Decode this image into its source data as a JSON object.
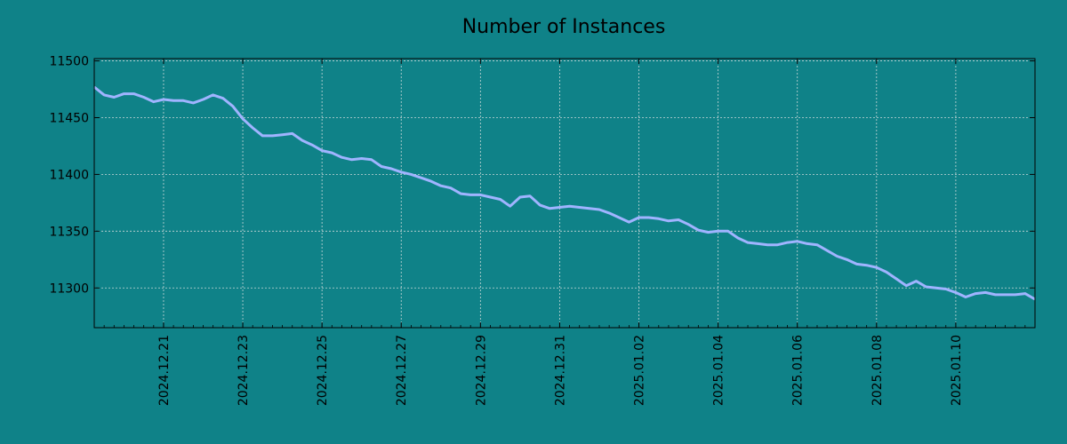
{
  "chart_data": {
    "type": "line",
    "title": "Number of Instances",
    "xlabel": "",
    "ylabel": "",
    "xlim": [
      "2024-12-19 06:00",
      "2025-01-12 00:00"
    ],
    "ylim": [
      11265,
      11502
    ],
    "grid": true,
    "x_ticks": [
      "2024.12.21",
      "2024.12.23",
      "2024.12.25",
      "2024.12.27",
      "2024.12.29",
      "2024.12.31",
      "2025.01.02",
      "2025.01.04",
      "2025.01.06",
      "2025.01.08",
      "2025.01.10"
    ],
    "y_ticks": [
      11300,
      11350,
      11400,
      11450,
      11500
    ],
    "colors": {
      "background": "#0f8288",
      "line": "#a0b4ff",
      "grid": "#c8d8d8",
      "axis": "#000000"
    },
    "series": [
      {
        "x": [
          "2024-12-19 06:00",
          "2024-12-19 12:00",
          "2024-12-19 18:00",
          "2024-12-20 00:00",
          "2024-12-20 06:00",
          "2024-12-20 12:00",
          "2024-12-20 18:00",
          "2024-12-21 00:00",
          "2024-12-21 06:00",
          "2024-12-21 12:00",
          "2024-12-21 18:00",
          "2024-12-22 00:00",
          "2024-12-22 06:00",
          "2024-12-22 12:00",
          "2024-12-22 18:00",
          "2024-12-23 00:00",
          "2024-12-23 06:00",
          "2024-12-23 12:00",
          "2024-12-23 18:00",
          "2024-12-24 00:00",
          "2024-12-24 06:00",
          "2024-12-24 12:00",
          "2024-12-24 18:00",
          "2024-12-25 00:00",
          "2024-12-25 06:00",
          "2024-12-25 12:00",
          "2024-12-25 18:00",
          "2024-12-26 00:00",
          "2024-12-26 06:00",
          "2024-12-26 12:00",
          "2024-12-26 18:00",
          "2024-12-27 00:00",
          "2024-12-27 06:00",
          "2024-12-27 12:00",
          "2024-12-27 18:00",
          "2024-12-28 00:00",
          "2024-12-28 06:00",
          "2024-12-28 12:00",
          "2024-12-28 18:00",
          "2024-12-29 00:00",
          "2024-12-29 06:00",
          "2024-12-29 12:00",
          "2024-12-29 18:00",
          "2024-12-30 00:00",
          "2024-12-30 06:00",
          "2024-12-30 12:00",
          "2024-12-30 18:00",
          "2024-12-31 00:00",
          "2024-12-31 06:00",
          "2024-12-31 12:00",
          "2024-12-31 18:00",
          "2025-01-01 00:00",
          "2025-01-01 06:00",
          "2025-01-01 12:00",
          "2025-01-01 18:00",
          "2025-01-02 00:00",
          "2025-01-02 06:00",
          "2025-01-02 12:00",
          "2025-01-02 18:00",
          "2025-01-03 00:00",
          "2025-01-03 06:00",
          "2025-01-03 12:00",
          "2025-01-03 18:00",
          "2025-01-04 00:00",
          "2025-01-04 06:00",
          "2025-01-04 12:00",
          "2025-01-04 18:00",
          "2025-01-05 00:00",
          "2025-01-05 06:00",
          "2025-01-05 12:00",
          "2025-01-05 18:00",
          "2025-01-06 00:00",
          "2025-01-06 06:00",
          "2025-01-06 12:00",
          "2025-01-06 18:00",
          "2025-01-07 00:00",
          "2025-01-07 06:00",
          "2025-01-07 12:00",
          "2025-01-07 18:00",
          "2025-01-08 00:00",
          "2025-01-08 06:00",
          "2025-01-08 12:00",
          "2025-01-08 18:00",
          "2025-01-09 00:00",
          "2025-01-09 06:00",
          "2025-01-09 12:00",
          "2025-01-09 18:00",
          "2025-01-10 00:00",
          "2025-01-10 06:00",
          "2025-01-10 12:00",
          "2025-01-10 18:00",
          "2025-01-11 00:00",
          "2025-01-11 06:00",
          "2025-01-11 12:00",
          "2025-01-11 18:00",
          "2025-01-12 00:00"
        ],
        "values": [
          11477,
          11470,
          11468,
          11471,
          11471,
          11468,
          11464,
          11466,
          11465,
          11465,
          11463,
          11466,
          11470,
          11467,
          11460,
          11449,
          11441,
          11434,
          11434,
          11435,
          11436,
          11430,
          11426,
          11421,
          11419,
          11415,
          11413,
          11414,
          11413,
          11407,
          11405,
          11402,
          11400,
          11397,
          11394,
          11390,
          11388,
          11383,
          11382,
          11382,
          11380,
          11378,
          11372,
          11380,
          11381,
          11373,
          11370,
          11371,
          11372,
          11371,
          11370,
          11369,
          11366,
          11362,
          11358,
          11362,
          11362,
          11361,
          11359,
          11360,
          11356,
          11351,
          11349,
          11350,
          11350,
          11344,
          11340,
          11339,
          11338,
          11338,
          11340,
          11341,
          11339,
          11338,
          11333,
          11328,
          11325,
          11321,
          11320,
          11318,
          11314,
          11308,
          11302,
          11306,
          11301,
          11300,
          11299,
          11296,
          11292,
          11295,
          11296,
          11294,
          11294,
          11294,
          11295,
          11290
        ]
      }
    ]
  }
}
